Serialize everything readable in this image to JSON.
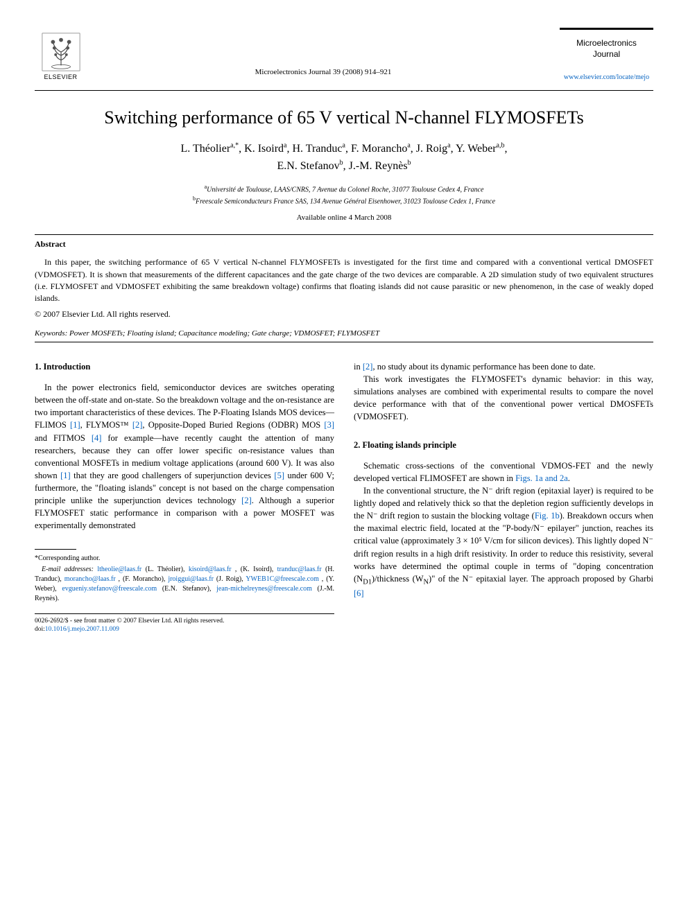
{
  "publisher": "ELSEVIER",
  "journal_reference": "Microelectronics Journal 39 (2008) 914–921",
  "journal_name_line1": "Microelectronics",
  "journal_name_line2": "Journal",
  "journal_url": "www.elsevier.com/locate/mejo",
  "title": "Switching performance of 65 V vertical N-channel FLYMOSFETs",
  "authors_line1_html": "L. Théolier<sup>a,*</sup>, K. Isoird<sup>a</sup>, H. Tranduc<sup>a</sup>, F. Morancho<sup>a</sup>, J. Roig<sup>a</sup>, Y. Weber<sup>a,b</sup>,",
  "authors_line2_html": "E.N. Stefanov<sup>b</sup>, J.-M. Reynès<sup>b</sup>",
  "affiliation_a_html": "<sup>a</sup>Université de Toulouse, LAAS/CNRS, 7 Avenue du Colonel Roche, 31077 Toulouse Cedex 4, France",
  "affiliation_b_html": "<sup>b</sup>Freescale Semiconducteurs France SAS, 134 Avenue Général Eisenhower, 31023 Toulouse Cedex 1, France",
  "available_date": "Available online 4 March 2008",
  "abstract_heading": "Abstract",
  "abstract_text": "In this paper, the switching performance of 65 V vertical N-channel FLYMOSFETs is investigated for the first time and compared with a conventional vertical DMOSFET (VDMOSFET). It is shown that measurements of the different capacitances and the gate charge of the two devices are comparable. A 2D simulation study of two equivalent structures (i.e. FLYMOSFET and VDMOSFET exhibiting the same breakdown voltage) confirms that floating islands did not cause parasitic or new phenomenon, in the case of weakly doped islands.",
  "copyright": "© 2007 Elsevier Ltd. All rights reserved.",
  "keywords_label": "Keywords:",
  "keywords_text": "Power MOSFETs; Floating island; Capacitance modeling; Gate charge; VDMOSFET; FLYMOSFET",
  "section1_heading": "1. Introduction",
  "section1_para1_parts": [
    {
      "t": "text",
      "v": "In the power electronics field, semiconductor devices are switches operating between the off-state and on-state. So the breakdown voltage and the on-resistance are two important characteristics of these devices. The P-Floating Islands MOS devices—FLIMOS "
    },
    {
      "t": "ref",
      "v": "[1]"
    },
    {
      "t": "text",
      "v": ", FLYMOS™ "
    },
    {
      "t": "ref",
      "v": "[2]"
    },
    {
      "t": "text",
      "v": ", Opposite-Doped Buried Regions (ODBR) MOS "
    },
    {
      "t": "ref",
      "v": "[3]"
    },
    {
      "t": "text",
      "v": " and FITMOS "
    },
    {
      "t": "ref",
      "v": "[4]"
    },
    {
      "t": "text",
      "v": " for example—have recently caught the attention of many researchers, because they can offer lower specific on-resistance values than conventional MOSFETs in medium voltage applications (around 600 V). It was also shown "
    },
    {
      "t": "ref",
      "v": "[1]"
    },
    {
      "t": "text",
      "v": " that they are good challengers of superjunction devices "
    },
    {
      "t": "ref",
      "v": "[5]"
    },
    {
      "t": "text",
      "v": " under 600 V; furthermore, the \"floating islands\" concept is not based on the charge compensation principle unlike the superjunction devices technology "
    },
    {
      "t": "ref",
      "v": "[2]"
    },
    {
      "t": "text",
      "v": ". Although a superior FLYMOSFET static performance in comparison with a power MOSFET was experimentally demonstrated"
    }
  ],
  "col2_para1_parts": [
    {
      "t": "text",
      "v": "in "
    },
    {
      "t": "ref",
      "v": "[2]"
    },
    {
      "t": "text",
      "v": ", no study about its dynamic performance has been done to date."
    }
  ],
  "col2_para2": "This work investigates the FLYMOSFET's dynamic behavior: in this way, simulations analyses are combined with experimental results to compare the novel device performance with that of the conventional power vertical DMOSFETs (VDMOSFET).",
  "section2_heading": "2. Floating islands principle",
  "section2_para1_parts": [
    {
      "t": "text",
      "v": "Schematic cross-sections of the conventional VDMOS-FET and the newly developed vertical FLIMOSFET are shown in "
    },
    {
      "t": "ref",
      "v": "Figs. 1a and 2a"
    },
    {
      "t": "text",
      "v": "."
    }
  ],
  "section2_para2_parts": [
    {
      "t": "text",
      "v": "In the conventional structure, the N⁻ drift region (epitaxial layer) is required to be lightly doped and relatively thick so that the depletion region sufficiently develops in the N⁻ drift region to sustain the blocking voltage ("
    },
    {
      "t": "ref",
      "v": "Fig. 1b"
    },
    {
      "t": "text",
      "v": "). Breakdown occurs when the maximal electric field, located at the \"P-body/N⁻ epilayer\" junction, reaches its critical value (approximately 3 × 10⁵ V/cm for silicon devices). This lightly doped N⁻ drift region results in a high drift resistivity. In order to reduce this resistivity, several works have determined the optimal couple in terms of \"doping concentration (N"
    },
    {
      "t": "sub",
      "v": "D1"
    },
    {
      "t": "text",
      "v": ")/thickness (W"
    },
    {
      "t": "sub",
      "v": "N"
    },
    {
      "t": "text",
      "v": ")\" of the N⁻ epitaxial layer. The approach proposed by Gharbi "
    },
    {
      "t": "ref",
      "v": "[6]"
    }
  ],
  "corresponding_label": "*Corresponding author.",
  "email_label": "E-mail addresses:",
  "emails": [
    {
      "addr": "ltheolie@laas.fr",
      "who": "(L. Théolier)"
    },
    {
      "addr": "kisoird@laas.fr",
      "who": ""
    },
    {
      "addr": "",
      "who": "(K. Isoird)",
      "cont": true
    },
    {
      "addr": "tranduc@laas.fr",
      "who": "(H. Tranduc)"
    },
    {
      "addr": "morancho@laas.fr",
      "who": ""
    },
    {
      "addr": "",
      "who": "(F. Morancho)",
      "cont": true
    },
    {
      "addr": "jroiggui@laas.fr",
      "who": "(J. Roig)"
    },
    {
      "addr": "YWEB1C@freescale.com",
      "who": ""
    },
    {
      "addr": "",
      "who": "(Y. Weber)",
      "cont": true
    },
    {
      "addr": "evgueniy.stefanov@freescale.com",
      "who": "(E.N. Stefanov)"
    },
    {
      "addr": "jean-michelreynes@freescale.com",
      "who": "(J.-M. Reynès)."
    }
  ],
  "front_matter_line1": "0026-2692/$ - see front matter © 2007 Elsevier Ltd. All rights reserved.",
  "doi_label": "doi:",
  "doi": "10.1016/j.mejo.2007.11.009",
  "colors": {
    "link": "#0563c1",
    "text": "#000000",
    "background": "#ffffff"
  },
  "typography": {
    "title_fontsize_pt": 20,
    "authors_fontsize_pt": 12,
    "body_fontsize_pt": 9.5,
    "footnote_fontsize_pt": 7.5,
    "font_family": "Times New Roman / Georgia serif"
  }
}
